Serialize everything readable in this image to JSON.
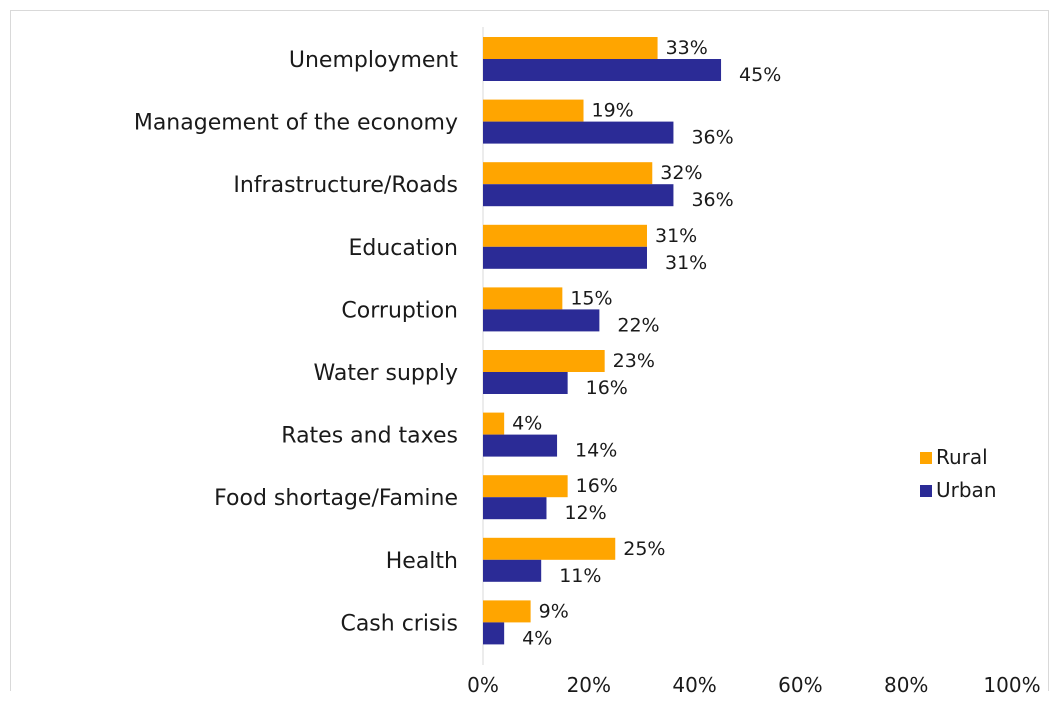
{
  "chart_data": {
    "type": "bar",
    "orientation": "horizontal",
    "categories": [
      "Unemployment",
      "Management of the economy",
      "Infrastructure/Roads",
      "Education",
      "Corruption",
      "Water supply",
      "Rates and taxes",
      "Food shortage/Famine",
      "Health",
      "Cash crisis"
    ],
    "series": [
      {
        "name": "Rural",
        "color": "#FFA500",
        "values": [
          33,
          19,
          32,
          31,
          15,
          23,
          4,
          16,
          25,
          9
        ],
        "labels": [
          "33%",
          "19%",
          "32%",
          "31%",
          "15%",
          "23%",
          "4%",
          "16%",
          "25%",
          "9%"
        ]
      },
      {
        "name": "Urban",
        "color": "#2B2B96",
        "values": [
          45,
          36,
          36,
          31,
          22,
          16,
          14,
          12,
          11,
          4
        ],
        "labels": [
          "45%",
          "36%",
          "36%",
          "31%",
          "22%",
          "16%",
          "14%",
          "12%",
          "11%",
          "4%"
        ]
      }
    ],
    "xlim": [
      0,
      100
    ],
    "x_ticks": [
      "0%",
      "20%",
      "40%",
      "60%",
      "80%",
      "100%"
    ],
    "grid": false,
    "legend_position": "right"
  }
}
